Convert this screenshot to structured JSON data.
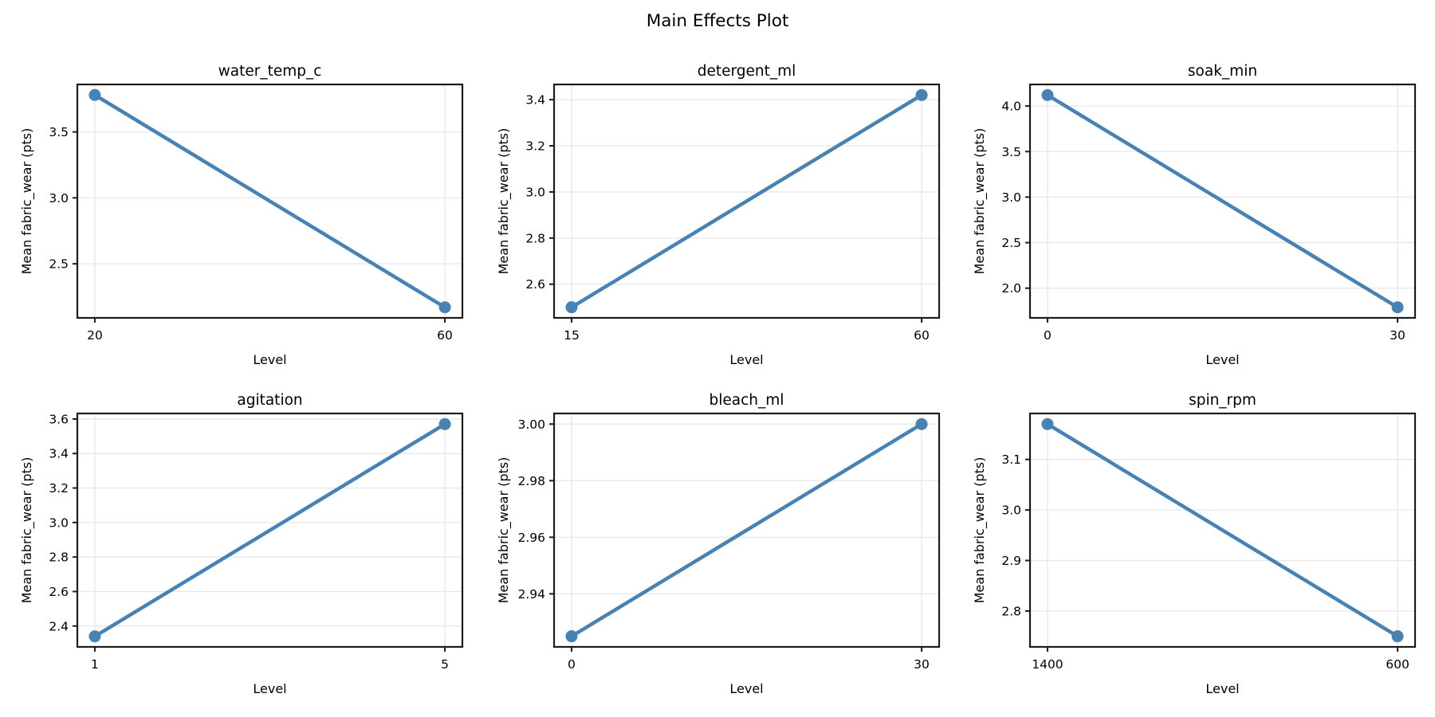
{
  "figure": {
    "title": "Main Effects Plot",
    "xlabel": "Level",
    "ylabel": "Mean fabric_wear (pts)"
  },
  "colors": {
    "line": "#4682b4",
    "marker": "#4682b4",
    "spine": "#1c1c1c",
    "grid": "#e7e7e7",
    "text": "#000000",
    "background": "#ffffff"
  },
  "chart_data": [
    {
      "type": "line",
      "title": "water_temp_c",
      "xlabel": "Level",
      "ylabel": "Mean fabric_wear (pts)",
      "categories": [
        "20",
        "60"
      ],
      "values": [
        3.78,
        2.17
      ],
      "yticks": [
        2.5,
        3.0,
        3.5
      ],
      "ytick_labels": [
        "2.5",
        "3.0",
        "3.5"
      ],
      "ylim": [
        2.09,
        3.86
      ],
      "grid": true,
      "legend": false
    },
    {
      "type": "line",
      "title": "detergent_ml",
      "xlabel": "Level",
      "ylabel": "Mean fabric_wear (pts)",
      "categories": [
        "15",
        "60"
      ],
      "values": [
        2.5,
        3.42
      ],
      "yticks": [
        2.6,
        2.8,
        3.0,
        3.2,
        3.4
      ],
      "ytick_labels": [
        "2.6",
        "2.8",
        "3.0",
        "3.2",
        "3.4"
      ],
      "ylim": [
        2.454,
        3.466
      ],
      "grid": true,
      "legend": false
    },
    {
      "type": "line",
      "title": "soak_min",
      "xlabel": "Level",
      "ylabel": "Mean fabric_wear (pts)",
      "categories": [
        "0",
        "30"
      ],
      "values": [
        4.12,
        1.79
      ],
      "yticks": [
        2.0,
        2.5,
        3.0,
        3.5,
        4.0
      ],
      "ytick_labels": [
        "2.0",
        "2.5",
        "3.0",
        "3.5",
        "4.0"
      ],
      "ylim": [
        1.674,
        4.237
      ],
      "grid": true,
      "legend": false
    },
    {
      "type": "line",
      "title": "agitation",
      "xlabel": "Level",
      "ylabel": "Mean fabric_wear (pts)",
      "categories": [
        "1",
        "5"
      ],
      "values": [
        2.34,
        3.57
      ],
      "yticks": [
        2.4,
        2.6,
        2.8,
        3.0,
        3.2,
        3.4,
        3.6
      ],
      "ytick_labels": [
        "2.4",
        "2.6",
        "2.8",
        "3.0",
        "3.2",
        "3.4",
        "3.6"
      ],
      "ylim": [
        2.279,
        3.632
      ],
      "grid": true,
      "legend": false
    },
    {
      "type": "line",
      "title": "bleach_ml",
      "xlabel": "Level",
      "ylabel": "Mean fabric_wear (pts)",
      "categories": [
        "0",
        "30"
      ],
      "values": [
        2.925,
        3.0
      ],
      "yticks": [
        2.94,
        2.96,
        2.98,
        3.0
      ],
      "ytick_labels": [
        "2.94",
        "2.96",
        "2.98",
        "3.00"
      ],
      "ylim": [
        2.92125,
        3.00375
      ],
      "grid": true,
      "legend": false
    },
    {
      "type": "line",
      "title": "spin_rpm",
      "xlabel": "Level",
      "ylabel": "Mean fabric_wear (pts)",
      "categories": [
        "1400",
        "600"
      ],
      "values": [
        3.17,
        2.75
      ],
      "yticks": [
        2.8,
        2.9,
        3.0,
        3.1
      ],
      "ytick_labels": [
        "2.8",
        "2.9",
        "3.0",
        "3.1"
      ],
      "ylim": [
        2.729,
        3.191
      ],
      "grid": true,
      "legend": false
    }
  ]
}
